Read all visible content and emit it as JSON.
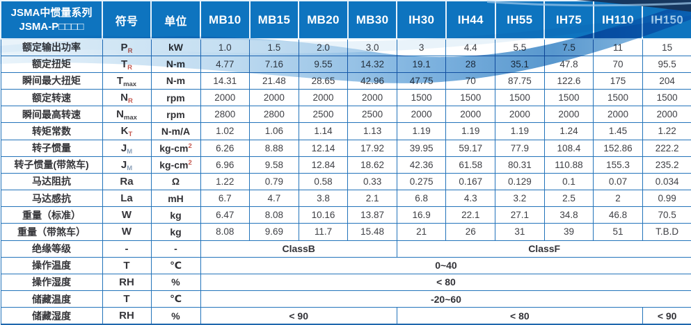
{
  "header": {
    "series_line1": "JSMA中惯量系列",
    "series_line2": "JSMA-P□□□□",
    "symbol_col": "符号",
    "unit_col": "单位",
    "models": [
      "MB10",
      "MB15",
      "MB20",
      "MB30",
      "IH30",
      "IH44",
      "IH55",
      "IH75",
      "IH110",
      "IH150"
    ]
  },
  "rows": [
    {
      "label": "额定输出功率",
      "symbol": "P",
      "sub": "R",
      "sub_style": "accent",
      "unit": "kW",
      "values": [
        "1.0",
        "1.5",
        "2.0",
        "3.0",
        "3",
        "4.4",
        "5.5",
        "7.5",
        "11",
        "15"
      ]
    },
    {
      "label": "额定扭矩",
      "symbol": "T",
      "sub": "R",
      "sub_style": "accent",
      "unit": "N-m",
      "values": [
        "4.77",
        "7.16",
        "9.55",
        "14.32",
        "19.1",
        "28",
        "35.1",
        "47.8",
        "70",
        "95.5"
      ]
    },
    {
      "label": "瞬间最大扭矩",
      "symbol": "T",
      "sub": "max",
      "sub_style": "plain",
      "unit": "N-m",
      "values": [
        "14.31",
        "21.48",
        "28.65",
        "42.96",
        "47.75",
        "70",
        "87.75",
        "122.6",
        "175",
        "204"
      ]
    },
    {
      "label": "额定转速",
      "symbol": "N",
      "sub": "R",
      "sub_style": "accent",
      "unit": "rpm",
      "values": [
        "2000",
        "2000",
        "2000",
        "2000",
        "1500",
        "1500",
        "1500",
        "1500",
        "1500",
        "1500"
      ]
    },
    {
      "label": "瞬间最高转速",
      "symbol": "N",
      "sub": "max",
      "sub_style": "plain",
      "unit": "rpm",
      "values": [
        "2800",
        "2800",
        "2500",
        "2500",
        "2000",
        "2000",
        "2000",
        "2000",
        "2000",
        "2000"
      ]
    },
    {
      "label": "转矩常数",
      "symbol": "K",
      "sub": "T",
      "sub_style": "accent",
      "unit": "N-m/A",
      "values": [
        "1.02",
        "1.06",
        "1.14",
        "1.13",
        "1.19",
        "1.19",
        "1.19",
        "1.24",
        "1.45",
        "1.22"
      ]
    },
    {
      "label": "转子惯量",
      "symbol": "J",
      "sub": "M",
      "sub_style": "muted",
      "unit": "kg-cm",
      "unit_sup": "2",
      "values": [
        "6.26",
        "8.88",
        "12.14",
        "17.92",
        "39.95",
        "59.17",
        "77.9",
        "108.4",
        "152.86",
        "222.2"
      ]
    },
    {
      "label": "转子惯量(带煞车)",
      "symbol": "J",
      "sub": "M",
      "sub_style": "muted",
      "unit": "kg-cm",
      "unit_sup": "2",
      "values": [
        "6.96",
        "9.58",
        "12.84",
        "18.62",
        "42.36",
        "61.58",
        "80.31",
        "110.88",
        "155.3",
        "235.2"
      ]
    },
    {
      "label": "马达阻抗",
      "symbol": "Ra",
      "unit": "Ω",
      "values": [
        "1.22",
        "0.79",
        "0.58",
        "0.33",
        "0.275",
        "0.167",
        "0.129",
        "0.1",
        "0.07",
        "0.034"
      ]
    },
    {
      "label": "马达感抗",
      "symbol": "La",
      "unit": "mH",
      "values": [
        "6.7",
        "4.7",
        "3.8",
        "2.1",
        "6.8",
        "4.3",
        "3.2",
        "2.5",
        "2",
        "0.99"
      ]
    },
    {
      "label": "重量（标准）",
      "symbol": "W",
      "unit": "kg",
      "values": [
        "6.47",
        "8.08",
        "10.16",
        "13.87",
        "16.9",
        "22.1",
        "27.1",
        "34.8",
        "46.8",
        "70.5"
      ]
    },
    {
      "label": "重量（带煞车）",
      "symbol": "W",
      "unit": "kg",
      "values": [
        "8.08",
        "9.69",
        "11.7",
        "15.48",
        "21",
        "26",
        "31",
        "39",
        "51",
        "T.B.D"
      ]
    },
    {
      "label": "绝缘等级",
      "symbol": "-",
      "unit": "-",
      "spans": [
        {
          "text": "ClassB",
          "cols": 4
        },
        {
          "text": "ClassF",
          "cols": 6
        }
      ]
    },
    {
      "label": "操作温度",
      "symbol": "T",
      "unit": "℃",
      "spans": [
        {
          "text": "0~40",
          "cols": 10
        }
      ]
    },
    {
      "label": "操作湿度",
      "symbol": "RH",
      "unit": "%",
      "unit_accent": true,
      "spans": [
        {
          "text": "< 80",
          "cols": 10
        }
      ]
    },
    {
      "label": "储藏温度",
      "symbol": "T",
      "unit": "℃",
      "spans": [
        {
          "text": "-20~60",
          "cols": 10
        }
      ]
    },
    {
      "label": "储藏湿度",
      "symbol": "RH",
      "unit": "%",
      "unit_accent": true,
      "spans": [
        {
          "text": "< 90",
          "cols": 4
        },
        {
          "text": "< 80",
          "cols": 5
        },
        {
          "text": "< 90",
          "cols": 1
        }
      ]
    }
  ],
  "colors": {
    "header_bg": "#0e74bf",
    "border_blue": "#2273ba",
    "accent_red": "#c4574e",
    "sub_muted": "#8ba1ba",
    "corner_navy": "#16375f",
    "wave_blue": "#2e7dc1"
  }
}
